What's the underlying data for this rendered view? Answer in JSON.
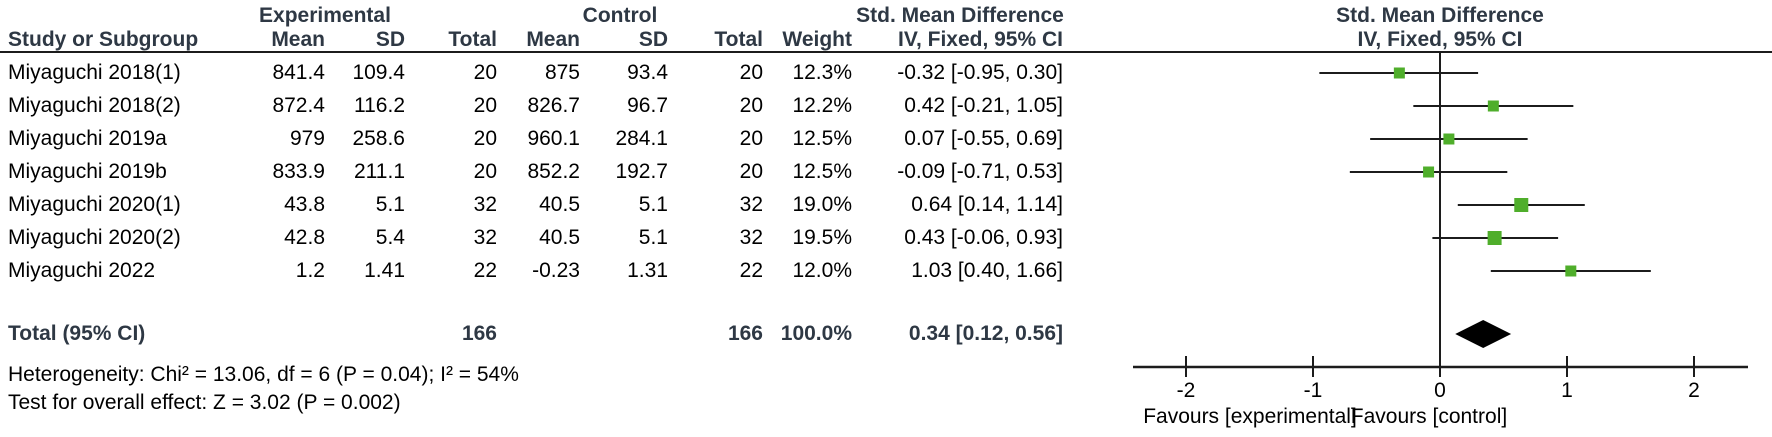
{
  "colors": {
    "square_green": "#4fae2b",
    "diamond_black": "#000000",
    "line_black": "#1c1c1c",
    "header_text": "#2e3844",
    "body_text": "#000000",
    "background": "#ffffff"
  },
  "table": {
    "group_headers": {
      "experimental": "Experimental",
      "control": "Control",
      "smd_left": "Std. Mean Difference",
      "smd_right": "Std. Mean Difference"
    },
    "col_headers": {
      "study": "Study or Subgroup",
      "mean": "Mean",
      "sd": "SD",
      "total": "Total",
      "weight": "Weight",
      "iv_ci_left": "IV, Fixed, 95% CI",
      "iv_ci_right": "IV, Fixed, 95% CI"
    },
    "rows": [
      {
        "study": "Miyaguchi 2018(1)",
        "exp_mean": "841.4",
        "exp_sd": "109.4",
        "exp_total": "20",
        "ctrl_mean": "875",
        "ctrl_sd": "93.4",
        "ctrl_total": "20",
        "weight": "12.3%",
        "smd_ci": "-0.32 [-0.95, 0.30]"
      },
      {
        "study": "Miyaguchi 2018(2)",
        "exp_mean": "872.4",
        "exp_sd": "116.2",
        "exp_total": "20",
        "ctrl_mean": "826.7",
        "ctrl_sd": "96.7",
        "ctrl_total": "20",
        "weight": "12.2%",
        "smd_ci": "0.42 [-0.21, 1.05]"
      },
      {
        "study": "Miyaguchi 2019a",
        "exp_mean": "979",
        "exp_sd": "258.6",
        "exp_total": "20",
        "ctrl_mean": "960.1",
        "ctrl_sd": "284.1",
        "ctrl_total": "20",
        "weight": "12.5%",
        "smd_ci": "0.07 [-0.55, 0.69]"
      },
      {
        "study": "Miyaguchi 2019b",
        "exp_mean": "833.9",
        "exp_sd": "211.1",
        "exp_total": "20",
        "ctrl_mean": "852.2",
        "ctrl_sd": "192.7",
        "ctrl_total": "20",
        "weight": "12.5%",
        "smd_ci": "-0.09 [-0.71, 0.53]"
      },
      {
        "study": "Miyaguchi 2020(1)",
        "exp_mean": "43.8",
        "exp_sd": "5.1",
        "exp_total": "32",
        "ctrl_mean": "40.5",
        "ctrl_sd": "5.1",
        "ctrl_total": "32",
        "weight": "19.0%",
        "smd_ci": "0.64 [0.14, 1.14]"
      },
      {
        "study": "Miyaguchi 2020(2)",
        "exp_mean": "42.8",
        "exp_sd": "5.4",
        "exp_total": "32",
        "ctrl_mean": "40.5",
        "ctrl_sd": "5.1",
        "ctrl_total": "32",
        "weight": "19.5%",
        "smd_ci": "0.43 [-0.06, 0.93]"
      },
      {
        "study": "Miyaguchi 2022",
        "exp_mean": "1.2",
        "exp_sd": "1.41",
        "exp_total": "22",
        "ctrl_mean": "-0.23",
        "ctrl_sd": "1.31",
        "ctrl_total": "22",
        "weight": "12.0%",
        "smd_ci": "1.03 [0.40, 1.66]"
      }
    ],
    "total_row": {
      "label": "Total (95% CI)",
      "exp_total": "166",
      "ctrl_total": "166",
      "weight": "100.0%",
      "smd_ci": "0.34 [0.12, 0.56]"
    },
    "heterogeneity": "Heterogeneity: Chi² = 13.06, df = 6 (P = 0.04); I² = 54%",
    "overall_effect": "Test for overall effect: Z = 3.02 (P = 0.002)"
  },
  "plot": {
    "tick_labels": [
      "-2",
      "-1",
      "0",
      "1",
      "2"
    ],
    "favours_left": "Favours [experimental]",
    "favours_right": "Favours [control]"
  },
  "chart_data": {
    "type": "scatter",
    "subtype": "forest_plot",
    "title": "Std. Mean Difference — IV, Fixed, 95% CI",
    "effect_measure": "Std. Mean Difference (IV, Fixed, 95% CI)",
    "xlim": [
      -2.42,
      2.42
    ],
    "x_ticks": [
      -2,
      -1,
      0,
      1,
      2
    ],
    "grid": false,
    "studies": [
      {
        "study": "Miyaguchi 2018(1)",
        "est": -0.32,
        "lo": -0.95,
        "hi": 0.3,
        "weight_pct": 12.3
      },
      {
        "study": "Miyaguchi 2018(2)",
        "est": 0.42,
        "lo": -0.21,
        "hi": 1.05,
        "weight_pct": 12.2
      },
      {
        "study": "Miyaguchi 2019a",
        "est": 0.07,
        "lo": -0.55,
        "hi": 0.69,
        "weight_pct": 12.5
      },
      {
        "study": "Miyaguchi 2019b",
        "est": -0.09,
        "lo": -0.71,
        "hi": 0.53,
        "weight_pct": 12.5
      },
      {
        "study": "Miyaguchi 2020(1)",
        "est": 0.64,
        "lo": 0.14,
        "hi": 1.14,
        "weight_pct": 19.0
      },
      {
        "study": "Miyaguchi 2020(2)",
        "est": 0.43,
        "lo": -0.06,
        "hi": 0.93,
        "weight_pct": 19.5
      },
      {
        "study": "Miyaguchi 2022",
        "est": 1.03,
        "lo": 0.4,
        "hi": 1.66,
        "weight_pct": 12.0
      }
    ],
    "summary": {
      "label": "Total (95% CI)",
      "est": 0.34,
      "lo": 0.12,
      "hi": 0.56,
      "total_experimental": 166,
      "total_control": 166,
      "weight_pct": 100.0
    },
    "heterogeneity": {
      "chi2": 13.06,
      "df": 6,
      "p": 0.04,
      "i2_pct": 54
    },
    "overall_effect": {
      "z": 3.02,
      "p": 0.002
    },
    "x_axis_annotations": [
      "Favours [experimental]",
      "Favours [control]"
    ]
  }
}
